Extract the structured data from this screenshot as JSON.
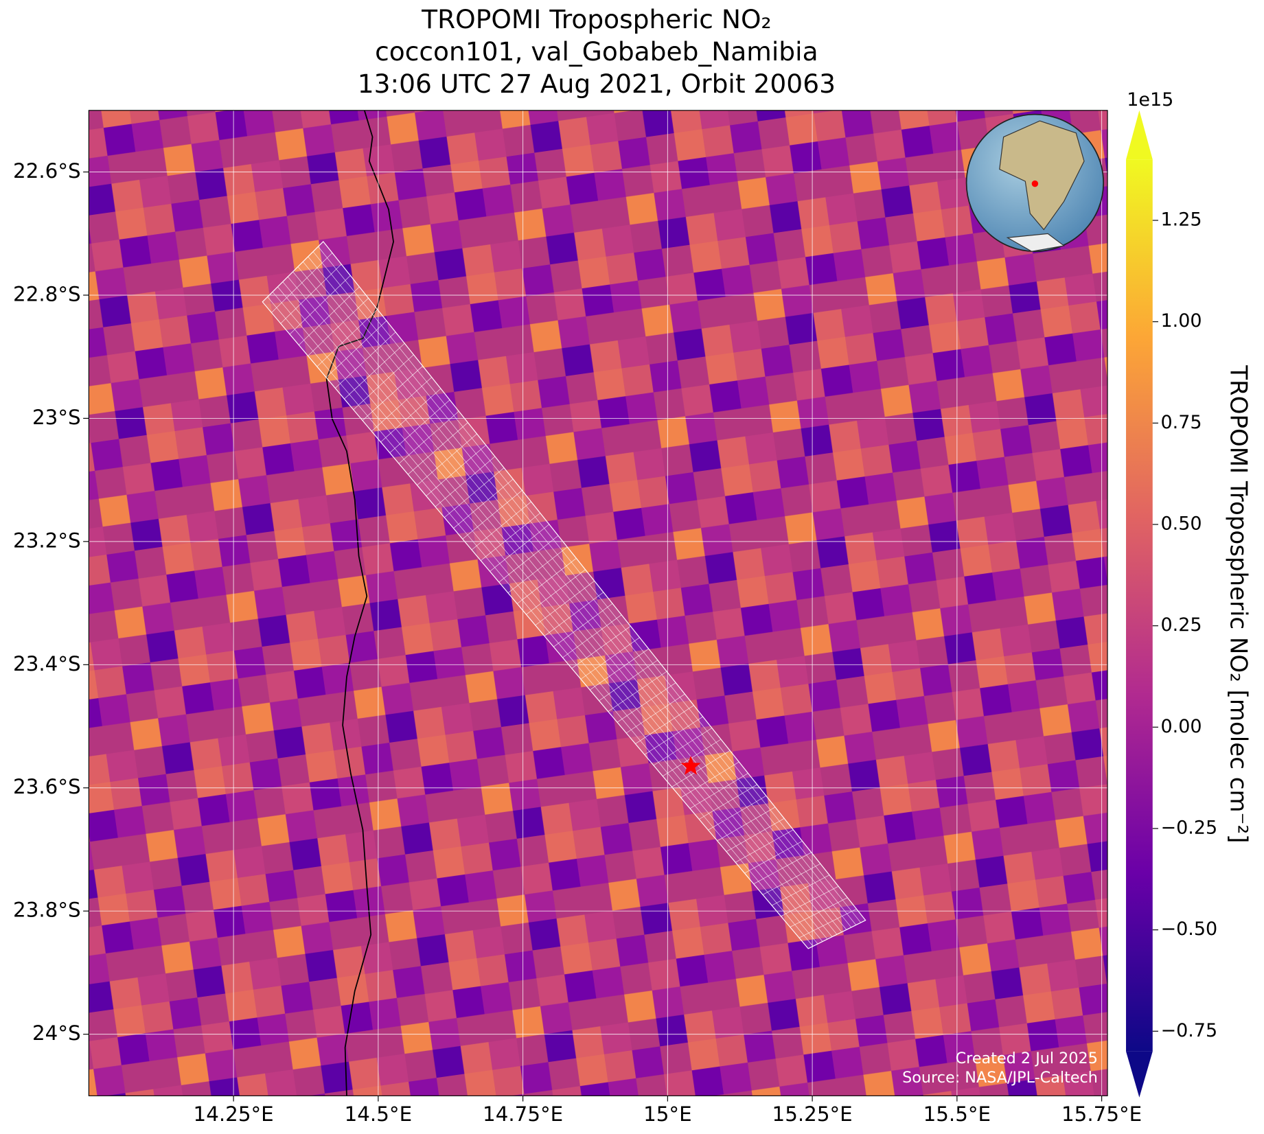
{
  "chart_data": {
    "type": "map",
    "title": [
      "TROPOMI Tropospheric NO₂",
      "coccon101, val_Gobabeb_Namibia",
      "13:06 UTC 27 Aug 2021, Orbit 20063"
    ],
    "xlim": [
      14.0,
      15.76
    ],
    "ylim": [
      -24.1,
      -22.5
    ],
    "xticks": [
      {
        "value": 14.25,
        "label": "14.25°E"
      },
      {
        "value": 14.5,
        "label": "14.5°E"
      },
      {
        "value": 14.75,
        "label": "14.75°E"
      },
      {
        "value": 15,
        "label": "15°E"
      },
      {
        "value": 15.25,
        "label": "15.25°E"
      },
      {
        "value": 15.5,
        "label": "15.5°E"
      },
      {
        "value": 15.75,
        "label": "15.75°E"
      }
    ],
    "yticks": [
      {
        "value": -22.6,
        "label": "22.6°S"
      },
      {
        "value": -22.8,
        "label": "22.8°S"
      },
      {
        "value": -23,
        "label": "23°S"
      },
      {
        "value": -23.2,
        "label": "23.2°S"
      },
      {
        "value": -23.4,
        "label": "23.4°S"
      },
      {
        "value": -23.6,
        "label": "23.6°S"
      },
      {
        "value": -23.8,
        "label": "23.8°S"
      },
      {
        "value": -24,
        "label": "24°S"
      }
    ],
    "grid": true,
    "site": {
      "lon": 15.04,
      "lat": -23.565,
      "color": "#ff0000"
    },
    "footprint": {
      "lon": [
        14.3,
        14.405,
        15.342,
        15.243
      ],
      "lat": [
        -22.811,
        -22.713,
        -23.815,
        -23.861
      ],
      "color": "#ffffff"
    },
    "colorbar": {
      "label": "TROPOMI Tropospheric NO₂ [molec cm⁻²]",
      "multiplier": "1e15",
      "clim": [
        -0.8,
        1.4
      ],
      "ticks": [
        {
          "value": -0.75,
          "label": "−0.75"
        },
        {
          "value": -0.5,
          "label": "−0.50"
        },
        {
          "value": -0.25,
          "label": "−0.25"
        },
        {
          "value": 0,
          "label": "0.00"
        },
        0.25,
        {
          "value": 0.5,
          "label": "0.50"
        },
        0.75,
        {
          "value": 1,
          "label": "1.00"
        },
        1.25
      ]
    },
    "credits": [
      "Created 2 Jul 2025",
      "Source: NASA/JPL-Caltech"
    ]
  }
}
